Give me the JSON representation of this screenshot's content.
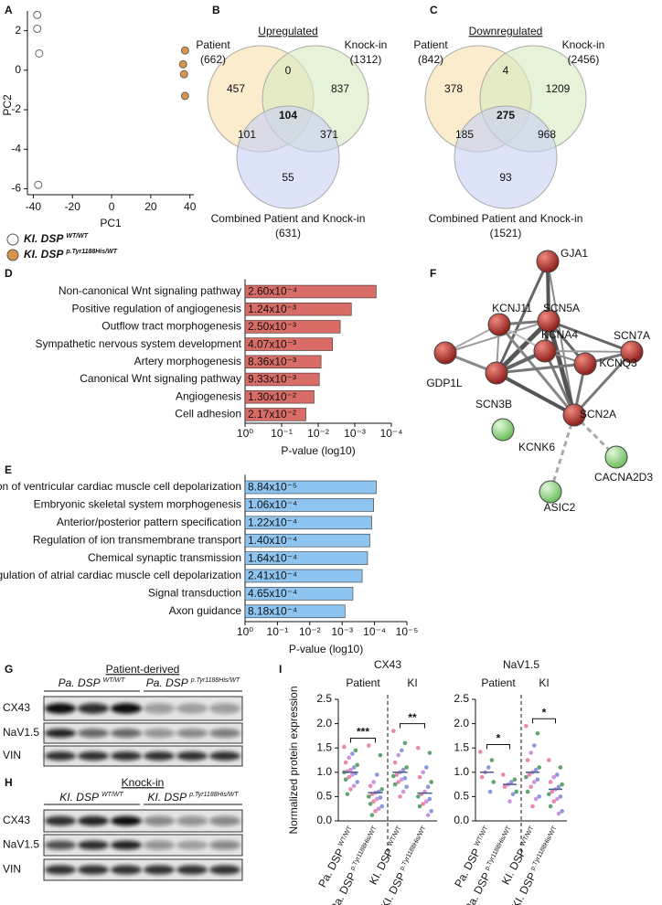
{
  "panels": [
    "A",
    "B",
    "C",
    "D",
    "E",
    "F",
    "G",
    "H",
    "I"
  ],
  "chart_data": [
    {
      "type": "scatter",
      "xlabel": "PC1",
      "ylabel": "PC2",
      "xlim": [
        -43,
        42
      ],
      "ylim": [
        -6.3,
        3
      ],
      "xticks": [
        -40,
        -20,
        0,
        20,
        40
      ],
      "yticks": [
        2,
        0,
        -2,
        -4,
        -6
      ],
      "series": [
        {
          "name": "KI. DSP",
          "genotype": "WT/WT",
          "color": "#ffffff",
          "x": [
            -38,
            -38,
            -37,
            -37.5
          ],
          "values": [
            2.8,
            2.1,
            0.85,
            -5.8
          ]
        },
        {
          "name": "KI. DSP",
          "genotype": "p.Tyr1188His/WT",
          "color": "#d9944a",
          "x": [
            37.5,
            36.5,
            37,
            37.5
          ],
          "values": [
            1.0,
            0.3,
            -0.2,
            -1.3
          ]
        }
      ]
    },
    {
      "type": "hbar",
      "log": true,
      "xlabel": "P-value (log10)",
      "color": "#d96c66",
      "categories": [
        "Non-canonical Wnt signaling pathway",
        "Positive regulation of angiogenesis",
        "Outflow tract morphogenesis",
        "Sympathetic nervous system development",
        "Artery morphogenesis",
        "Canonical Wnt signaling pathway",
        "Angiogenesis",
        "Cell adhesion"
      ],
      "values": [
        0.00026,
        0.00124,
        0.0025,
        0.00407,
        0.00836,
        0.00933,
        0.013,
        0.0217
      ],
      "value_labels": [
        "2.60x10⁻⁴",
        "1.24x10⁻³",
        "2.50x10⁻³",
        "4.07x10⁻³",
        "8.36x10⁻³",
        "9.33x10⁻³",
        "1.30x10⁻²",
        "2.17x10⁻²"
      ],
      "xlim": [
        1,
        0.0001
      ],
      "xticks": [
        {
          "value": 1,
          "label": "10⁰"
        },
        {
          "value": 0.1,
          "label": "10⁻¹"
        },
        {
          "value": 0.01,
          "label": "10⁻²"
        },
        {
          "value": 0.001,
          "label": "10⁻³"
        },
        {
          "value": 0.0001,
          "label": "10⁻⁴"
        }
      ]
    },
    {
      "type": "hbar",
      "log": true,
      "xlabel": "P-value (log10)",
      "color": "#8ec5f0",
      "categories": [
        "Regulation of ventricular cardiac muscle cell depolarization",
        "Embryonic skeletal system morphogenesis",
        "Anterior/posterior pattern specification",
        "Regulation of ion transmembrane transport",
        "Chemical synaptic transmission",
        "Regulation of atrial cardiac muscle cell depolarization",
        "Signal transduction",
        "Axon guidance"
      ],
      "values": [
        8.84e-05,
        0.000106,
        0.000122,
        0.00014,
        0.000164,
        0.000241,
        0.000465,
        0.000818
      ],
      "value_labels": [
        "8.84x10⁻⁵",
        "1.06x10⁻⁴",
        "1.22x10⁻⁴",
        "1.40x10⁻⁴",
        "1.64x10⁻⁴",
        "2.41x10⁻⁴",
        "4.65x10⁻⁴",
        "8.18x10⁻⁴"
      ],
      "xlim": [
        1,
        1e-05
      ],
      "xticks": [
        {
          "value": 1,
          "label": "10⁰"
        },
        {
          "value": 0.1,
          "label": "10⁻¹"
        },
        {
          "value": 0.01,
          "label": "10⁻²"
        },
        {
          "value": 0.001,
          "label": "10⁻³"
        },
        {
          "value": 0.0001,
          "label": "10⁻⁴"
        },
        {
          "value": 1e-05,
          "label": "10⁻⁵"
        }
      ]
    },
    {
      "type": "strip",
      "title": "CX43",
      "ylabel": "Normalized protein expression",
      "groups": [
        "Patient",
        "KI"
      ],
      "categories": [
        "Pa. DSP",
        "Pa. DSP",
        "KI. DSP",
        "KI. DSP"
      ],
      "genotypes": [
        "WT/WT",
        "p.Tyr1188His/WT",
        "WT/WT",
        "p.Tyr1188His/WT"
      ],
      "values": [
        [
          1.52,
          1.45,
          1.38,
          1.3,
          1.2,
          1.15,
          1.1,
          1.05,
          1.02,
          1.0,
          0.98,
          0.95,
          0.9,
          0.85,
          0.8,
          0.72,
          0.65,
          0.55
        ],
        [
          1.55,
          1.35,
          0.95,
          0.8,
          0.72,
          0.65,
          0.6,
          0.58,
          0.55,
          0.5,
          0.48,
          0.45,
          0.4,
          0.35,
          0.3,
          0.25,
          0.2,
          0.12
        ],
        [
          1.85,
          1.6,
          1.45,
          1.35,
          1.2,
          1.1,
          1.05,
          1.0,
          0.95,
          0.92,
          0.88,
          0.85,
          0.8,
          0.75,
          0.7,
          0.6,
          0.5
        ],
        [
          1.5,
          1.4,
          1.1,
          1.0,
          0.9,
          0.8,
          0.7,
          0.6,
          0.55,
          0.5,
          0.45,
          0.4,
          0.35,
          0.3,
          0.2,
          0.12
        ]
      ],
      "means": [
        1.0,
        0.58,
        1.0,
        0.57
      ],
      "significance": [
        "***",
        "**"
      ],
      "palette": [
        "#e87ca0",
        "#4f9c62",
        "#7f8ed6",
        "#c78ad8"
      ],
      "ylim": [
        0,
        2.5
      ],
      "yticks": [
        {
          "value": 0,
          "label": "0.0"
        },
        0.5,
        {
          "value": 1,
          "label": "1.0"
        },
        1.5,
        {
          "value": 2,
          "label": "2.0"
        },
        2.5
      ]
    },
    {
      "type": "strip",
      "title": "NaV1.5",
      "groups": [
        "Patient",
        "KI"
      ],
      "categories": [
        "Pa. DSP",
        "Pa. DSP",
        "KI. DSP",
        "KI. DSP"
      ],
      "genotypes": [
        "WT/WT",
        "p.Tyr1188His/WT",
        "WT/WT",
        "p.Tyr1188His/WT"
      ],
      "values": [
        [
          1.42,
          1.25,
          1.1,
          1.0,
          0.9,
          0.8,
          0.6
        ],
        [
          0.95,
          0.85,
          0.8,
          0.75,
          0.7,
          0.6,
          0.55,
          0.4
        ],
        [
          1.95,
          1.8,
          1.55,
          1.4,
          1.25,
          1.1,
          1.05,
          1.0,
          0.95,
          0.9,
          0.85,
          0.8,
          0.7,
          0.6,
          0.5,
          0.45,
          0.3
        ],
        [
          1.25,
          1.1,
          0.95,
          0.9,
          0.8,
          0.75,
          0.7,
          0.65,
          0.6,
          0.55,
          0.5,
          0.45,
          0.4,
          0.3,
          0.2,
          0.15
        ]
      ],
      "means": [
        1.0,
        0.75,
        1.0,
        0.65
      ],
      "significance": [
        "*",
        "*"
      ],
      "palette": [
        "#e87ca0",
        "#4f9c62",
        "#7f8ed6",
        "#c78ad8"
      ],
      "ylim": [
        0,
        2.5
      ],
      "yticks": [
        {
          "value": 0,
          "label": "0.0"
        },
        0.5,
        {
          "value": 1,
          "label": "1.0"
        },
        1.5,
        {
          "value": 2,
          "label": "2.0"
        },
        2.5
      ]
    }
  ],
  "venn": [
    {
      "title": "Upregulated",
      "sets": [
        {
          "label": "Patient",
          "count": "(662)"
        },
        {
          "label": "Knock-in",
          "count": "(1312)"
        },
        {
          "label": "Combined Patient and Knock-in",
          "count": "(631)"
        }
      ],
      "regions": {
        "patient_only": 457,
        "patient_knockin": 0,
        "knockin_only": 837,
        "all": 104,
        "patient_combined": 101,
        "knockin_combined": 371,
        "combined_only": 55
      }
    },
    {
      "title": "Downregulated",
      "sets": [
        {
          "label": "Patient",
          "count": "(842)"
        },
        {
          "label": "Knock-in",
          "count": "(2456)"
        },
        {
          "label": "Combined Patient and Knock-in",
          "count": "(1521)"
        }
      ],
      "regions": {
        "patient_only": 378,
        "patient_knockin": 4,
        "knockin_only": 1209,
        "all": 275,
        "patient_combined": 185,
        "knockin_combined": 968,
        "combined_only": 93
      }
    }
  ],
  "network": {
    "nodes": [
      {
        "label": "GJA1",
        "color": "#b8332e"
      },
      {
        "label": "SCN5A",
        "color": "#b8332e"
      },
      {
        "label": "KCNJ11",
        "color": "#b8332e"
      },
      {
        "label": "SCN7A",
        "color": "#b8332e"
      },
      {
        "label": "KCNA4",
        "color": "#b8332e"
      },
      {
        "label": "KCNQ3",
        "color": "#b8332e"
      },
      {
        "label": "GDP1L",
        "color": "#b8332e"
      },
      {
        "label": "SCN3B",
        "color": "#b8332e"
      },
      {
        "label": "SCN2A",
        "color": "#b8332e"
      },
      {
        "label": "KCNK6",
        "color": "#8fcf80"
      },
      {
        "label": "CACNA2D3",
        "color": "#8fcf80"
      },
      {
        "label": "ASIC2",
        "color": "#8fcf80"
      }
    ]
  },
  "blots": [
    {
      "title": "Patient-derived",
      "groups": [
        {
          "name": "Pa. DSP",
          "genotype": "WT/WT"
        },
        {
          "name": "Pa. DSP",
          "genotype": "p.Tyr1188His/WT"
        }
      ],
      "rows": [
        "CX43",
        "NaV1.5",
        "VIN"
      ]
    },
    {
      "title": "Knock-in",
      "groups": [
        {
          "name": "KI. DSP",
          "genotype": "WT/WT"
        },
        {
          "name": "KI. DSP",
          "genotype": "p.Tyr1188His/WT"
        }
      ],
      "rows": [
        "CX43",
        "NaV1.5",
        "VIN"
      ]
    }
  ]
}
